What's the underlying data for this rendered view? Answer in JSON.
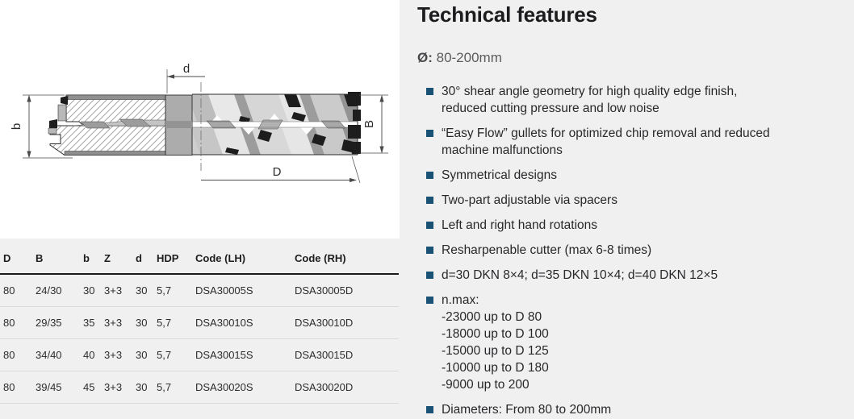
{
  "colors": {
    "page_background": "#f0f0f1",
    "panel_background": "#ffffff",
    "bullet_accent": "#1a5276",
    "heading": "#1c1c1e",
    "body_text": "#28282a",
    "muted_text": "#5b5b5d",
    "table_rule_heavy": "#1b1b1b",
    "table_rule_light": "#d9d9d9"
  },
  "drawing": {
    "labels": {
      "d": "d",
      "b": "b",
      "B": "B",
      "D": "D"
    }
  },
  "features": {
    "title": "Technical features",
    "diameter": {
      "symbol": "Ø:",
      "value": " 80-200mm"
    },
    "items": [
      [
        "30° shear angle geometry for high quality edge finish,",
        "reduced cutting pressure and low noise"
      ],
      [
        "“Easy Flow” gullets for optimized chip removal and reduced",
        "machine malfunctions"
      ],
      [
        "Symmetrical designs"
      ],
      [
        "Two-part adjustable via spacers"
      ],
      [
        "Left and right hand rotations"
      ],
      [
        "Resharpenable cutter (max 6-8 times)"
      ],
      [
        "d=30 DKN 8×4; d=35 DKN 10×4; d=40 DKN 12×5"
      ],
      [
        "n.max:",
        "-23000 up to D 80",
        "-18000 up to D 100",
        "-15000 up to D 125",
        "-10000 up to D 180",
        "-9000 up to 200"
      ],
      [
        "Diameters: From 80 to 200mm"
      ]
    ]
  },
  "table": {
    "headers": [
      "D",
      "B",
      "b",
      "Z",
      "d",
      "HDP",
      "Code (LH)",
      "Code (RH)"
    ],
    "rows": [
      [
        "80",
        "24/30",
        "30",
        "3+3",
        "30",
        "5,7",
        "DSA30005S",
        "DSA30005D"
      ],
      [
        "80",
        "29/35",
        "35",
        "3+3",
        "30",
        "5,7",
        "DSA30010S",
        "DSA30010D"
      ],
      [
        "80",
        "34/40",
        "40",
        "3+3",
        "30",
        "5,7",
        "DSA30015S",
        "DSA30015D"
      ],
      [
        "80",
        "39/45",
        "45",
        "3+3",
        "30",
        "5,7",
        "DSA30020S",
        "DSA30020D"
      ]
    ]
  }
}
